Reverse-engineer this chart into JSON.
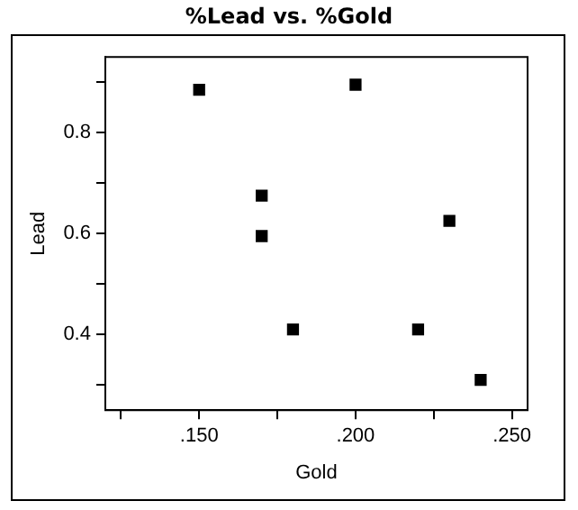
{
  "chart_data": {
    "type": "scatter",
    "title": "%Lead  vs. %Gold",
    "xlabel": "Gold",
    "ylabel": "Lead",
    "x": [
      0.15,
      0.2,
      0.17,
      0.17,
      0.18,
      0.22,
      0.23,
      0.24
    ],
    "series": [
      {
        "color": "#000000",
        "values": [
          0.885,
          0.895,
          0.675,
          0.595,
          0.41,
          0.41,
          0.625,
          0.31
        ]
      }
    ],
    "xlim": [
      0.12,
      0.255
    ],
    "xticks": [
      {
        "value": 0.125,
        "label": null
      },
      {
        "value": 0.15,
        "label": ".150"
      },
      {
        "value": 0.175,
        "label": null
      },
      {
        "value": 0.2,
        "label": ".200"
      },
      {
        "value": 0.225,
        "label": null
      },
      {
        "value": 0.25,
        "label": ".250"
      }
    ],
    "ylim": [
      0.25,
      0.95
    ],
    "yticks": [
      {
        "value": 0.3,
        "label": null
      },
      {
        "value": 0.4,
        "label": "0.4"
      },
      {
        "value": 0.5,
        "label": null
      },
      {
        "value": 0.6,
        "label": "0.6"
      },
      {
        "value": 0.7,
        "label": null
      },
      {
        "value": 0.8,
        "label": "0.8"
      },
      {
        "value": 0.9,
        "label": null
      }
    ],
    "marker": "square",
    "grid": false,
    "legend": false
  }
}
